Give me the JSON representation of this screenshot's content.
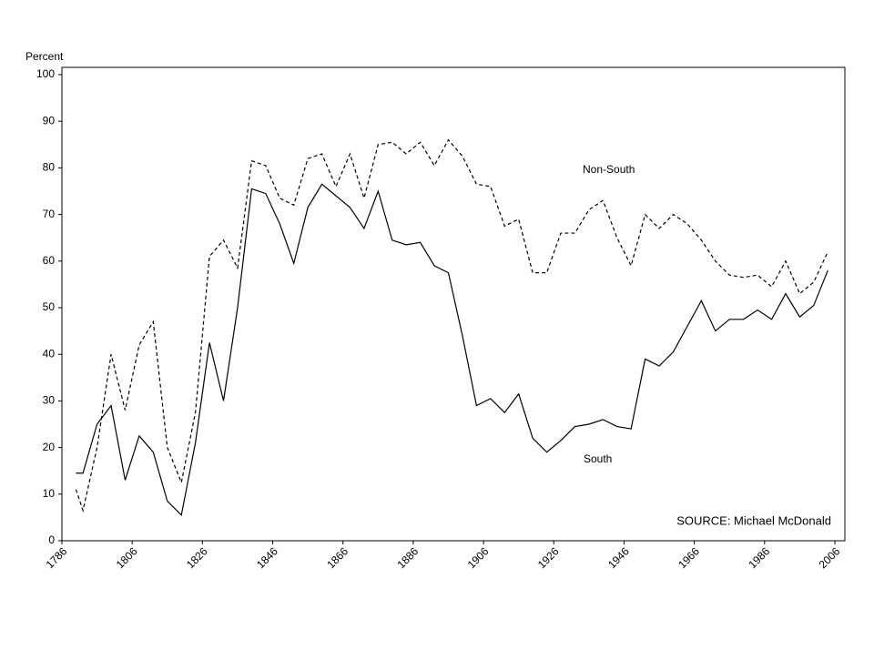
{
  "chart_data": {
    "type": "line",
    "y_label": "Percent",
    "annotation": "SOURCE: Michael McDonald",
    "x": [
      1790,
      1792,
      1796,
      1800,
      1804,
      1808,
      1812,
      1816,
      1820,
      1824,
      1828,
      1832,
      1836,
      1840,
      1844,
      1848,
      1852,
      1856,
      1860,
      1864,
      1868,
      1872,
      1876,
      1880,
      1884,
      1888,
      1892,
      1896,
      1900,
      1904,
      1908,
      1912,
      1916,
      1920,
      1924,
      1928,
      1932,
      1936,
      1940,
      1944,
      1948,
      1952,
      1956,
      1960,
      1964,
      1968,
      1972,
      1976,
      1980,
      1984,
      1988,
      1992,
      1996,
      2000,
      2004
    ],
    "series": [
      {
        "name": "Non-South",
        "color": "#000000",
        "dash": "4,3",
        "values": [
          11,
          6.5,
          20,
          40,
          28,
          42,
          47,
          20,
          12.5,
          27.5,
          61,
          64.5,
          58.5,
          81.5,
          80.5,
          73.5,
          72,
          82,
          83,
          76,
          83,
          73.5,
          85,
          85.5,
          83,
          85.5,
          80.5,
          86,
          82.5,
          76.5,
          76,
          67.5,
          69,
          57.5,
          57.5,
          66,
          66,
          71,
          73,
          65,
          59,
          70,
          67,
          70,
          68,
          64.5,
          60,
          57,
          56.5,
          57,
          54.5,
          60,
          53,
          55.5,
          62
        ]
      },
      {
        "name": "South",
        "color": "#000000",
        "dash": "none",
        "values": [
          14.5,
          14.5,
          25,
          29,
          13,
          22.5,
          19,
          8.5,
          5.5,
          21,
          42.5,
          30,
          50,
          75.5,
          74.5,
          68,
          59.5,
          71.5,
          76.5,
          74,
          71.5,
          67,
          75,
          64.5,
          63.5,
          64,
          59,
          57.5,
          44,
          29,
          30.5,
          27.5,
          31.5,
          22,
          19,
          21.5,
          24.5,
          25,
          26,
          24.5,
          24,
          39,
          37.5,
          40.5,
          46,
          51.5,
          45,
          47.5,
          47.5,
          49.5,
          47.5,
          53,
          48,
          50.5,
          58
        ]
      }
    ],
    "xlim": [
      1786,
      2006
    ],
    "xticks": [
      1786,
      1806,
      1826,
      1846,
      1866,
      1886,
      1906,
      1926,
      1946,
      1966,
      1986,
      2006
    ],
    "ylim": [
      0,
      100
    ],
    "yticks": [
      0,
      10,
      20,
      30,
      40,
      50,
      60,
      70,
      80,
      90,
      100
    ],
    "grid": false
  }
}
